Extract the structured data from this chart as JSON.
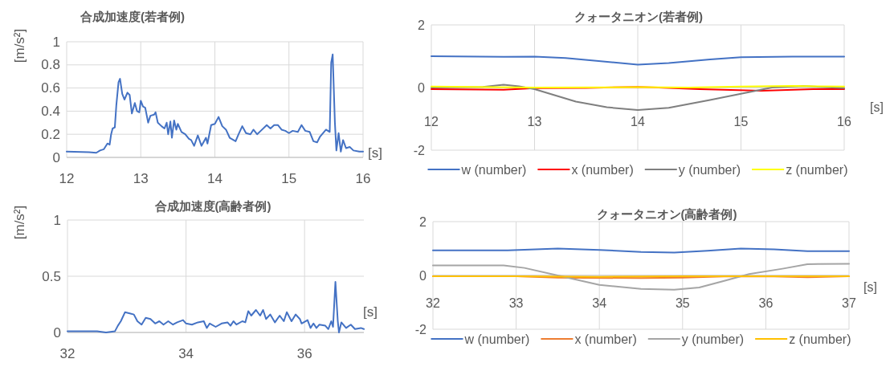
{
  "chart_data": [
    {
      "type": "line",
      "title": "合成加速度(若者例)",
      "xlabel": "[s]",
      "ylabel": "[m/s²]",
      "xlim": [
        12,
        16
      ],
      "xticks": [
        12,
        13,
        14,
        15,
        16
      ],
      "ylim": [
        0,
        1
      ],
      "yticks": [
        0,
        0.2,
        0.4,
        0.6,
        0.8,
        1
      ],
      "grid": true,
      "series": [
        {
          "color": "#4472c4",
          "x": [
            12.0,
            12.3,
            12.4,
            12.45,
            12.5,
            12.55,
            12.58,
            12.6,
            12.62,
            12.65,
            12.67,
            12.7,
            12.72,
            12.75,
            12.78,
            12.82,
            12.85,
            12.88,
            12.92,
            12.95,
            12.98,
            13.0,
            13.03,
            13.06,
            13.1,
            13.13,
            13.18,
            13.2,
            13.23,
            13.28,
            13.32,
            13.35,
            13.37,
            13.4,
            13.42,
            13.45,
            13.48,
            13.5,
            13.55,
            13.6,
            13.65,
            13.68,
            13.72,
            13.77,
            13.82,
            13.88,
            13.9,
            13.95,
            14.0,
            14.05,
            14.1,
            14.15,
            14.2,
            14.28,
            14.32,
            14.37,
            14.42,
            14.48,
            14.52,
            14.57,
            14.62,
            14.7,
            14.75,
            14.8,
            14.85,
            14.9,
            14.95,
            15.0,
            15.05,
            15.12,
            15.17,
            15.22,
            15.28,
            15.33,
            15.38,
            15.42,
            15.5,
            15.55,
            15.57,
            15.59,
            15.62,
            15.64,
            15.67,
            15.7,
            15.73,
            15.77,
            15.82,
            15.87,
            15.95,
            16.0
          ],
          "values": [
            0.05,
            0.045,
            0.04,
            0.06,
            0.07,
            0.12,
            0.11,
            0.2,
            0.25,
            0.26,
            0.45,
            0.65,
            0.68,
            0.55,
            0.5,
            0.56,
            0.54,
            0.38,
            0.47,
            0.4,
            0.39,
            0.49,
            0.44,
            0.43,
            0.3,
            0.36,
            0.37,
            0.39,
            0.3,
            0.27,
            0.25,
            0.3,
            0.2,
            0.31,
            0.17,
            0.32,
            0.24,
            0.29,
            0.22,
            0.2,
            0.16,
            0.15,
            0.1,
            0.19,
            0.1,
            0.17,
            0.12,
            0.28,
            0.29,
            0.35,
            0.27,
            0.24,
            0.17,
            0.14,
            0.2,
            0.27,
            0.21,
            0.2,
            0.24,
            0.2,
            0.23,
            0.28,
            0.25,
            0.28,
            0.28,
            0.24,
            0.23,
            0.21,
            0.23,
            0.22,
            0.28,
            0.23,
            0.22,
            0.14,
            0.13,
            0.18,
            0.24,
            0.22,
            0.82,
            0.89,
            0.3,
            0.06,
            0.21,
            0.05,
            0.15,
            0.08,
            0.09,
            0.06,
            0.05,
            0.05
          ]
        }
      ]
    },
    {
      "type": "line",
      "title": "クォータニオン(若者例)",
      "xlabel": "[s]",
      "xlim": [
        12,
        16
      ],
      "xticks": [
        12,
        13,
        14,
        15,
        16
      ],
      "ylim": [
        -2,
        2
      ],
      "yticks": [
        -2,
        0,
        2
      ],
      "grid": true,
      "legend": "bottom",
      "series": [
        {
          "name": "w (number)",
          "color": "#4472c4",
          "x": [
            12,
            12.7,
            13.0,
            13.3,
            13.6,
            14.0,
            14.3,
            14.7,
            15.0,
            15.5,
            16
          ],
          "values": [
            1.0,
            0.98,
            0.99,
            0.94,
            0.85,
            0.73,
            0.78,
            0.9,
            0.97,
            0.99,
            0.99
          ]
        },
        {
          "name": "x (number)",
          "color": "#ff0000",
          "x": [
            12,
            12.7,
            13,
            13.5,
            14,
            14.2,
            14.6,
            15.2,
            15.7,
            16
          ],
          "values": [
            -0.05,
            -0.07,
            -0.02,
            -0.01,
            0.02,
            0.0,
            -0.05,
            -0.1,
            -0.05,
            -0.05
          ]
        },
        {
          "name": "y (number)",
          "color": "#7f7f7f",
          "x": [
            12,
            12.5,
            12.7,
            12.85,
            13.0,
            13.4,
            13.7,
            14.0,
            14.3,
            14.7,
            15.0,
            15.3,
            15.6,
            16
          ],
          "values": [
            0.0,
            0.02,
            0.09,
            0.04,
            -0.05,
            -0.45,
            -0.63,
            -0.72,
            -0.65,
            -0.4,
            -0.2,
            0.0,
            0.05,
            -0.02
          ]
        },
        {
          "name": "z (number)",
          "color": "#ffff00",
          "x": [
            12,
            13,
            14,
            14.5,
            15,
            15.5,
            16
          ],
          "values": [
            0.03,
            0.0,
            0.01,
            0.0,
            0.03,
            0.05,
            0.03
          ]
        }
      ]
    },
    {
      "type": "line",
      "title": "合成加速度(高齢者例)",
      "xlabel": "[s]",
      "ylabel": "[m/s²]",
      "xlim": [
        32,
        37
      ],
      "xticks": [
        32,
        34,
        36
      ],
      "ylim": [
        0,
        1
      ],
      "yticks": [
        0,
        0.5,
        1
      ],
      "grid": true,
      "series": [
        {
          "color": "#4472c4",
          "x": [
            32.0,
            32.5,
            32.65,
            32.8,
            32.85,
            32.9,
            32.97,
            33.05,
            33.12,
            33.18,
            33.25,
            33.32,
            33.4,
            33.48,
            33.55,
            33.62,
            33.7,
            33.78,
            33.85,
            33.95,
            34.0,
            34.1,
            34.2,
            34.3,
            34.35,
            34.4,
            34.5,
            34.6,
            34.7,
            34.75,
            34.8,
            34.85,
            34.95,
            35.0,
            35.05,
            35.1,
            35.18,
            35.25,
            35.3,
            35.35,
            35.42,
            35.5,
            35.58,
            35.65,
            35.7,
            35.78,
            35.85,
            35.92,
            35.95,
            36.05,
            36.1,
            36.15,
            36.2,
            36.25,
            36.35,
            36.4,
            36.45,
            36.48,
            36.52,
            36.56,
            36.58,
            36.62,
            36.7,
            36.78,
            36.85,
            36.95,
            37.0
          ],
          "values": [
            0.01,
            0.01,
            0.0,
            0.01,
            0.06,
            0.1,
            0.18,
            0.17,
            0.16,
            0.1,
            0.07,
            0.13,
            0.12,
            0.08,
            0.1,
            0.07,
            0.1,
            0.07,
            0.09,
            0.11,
            0.08,
            0.07,
            0.09,
            0.1,
            0.04,
            0.08,
            0.05,
            0.08,
            0.09,
            0.06,
            0.1,
            0.07,
            0.1,
            0.09,
            0.19,
            0.15,
            0.2,
            0.15,
            0.2,
            0.12,
            0.16,
            0.09,
            0.15,
            0.1,
            0.18,
            0.1,
            0.16,
            0.12,
            0.08,
            0.11,
            0.04,
            0.08,
            0.04,
            0.07,
            0.06,
            0.03,
            0.1,
            0.05,
            0.45,
            0.1,
            0.0,
            0.09,
            0.04,
            0.07,
            0.03,
            0.04,
            0.03
          ]
        }
      ]
    },
    {
      "type": "line",
      "title": "クォータニオン(高齢者例)",
      "xlabel": "[s]",
      "xlim": [
        32,
        37
      ],
      "xticks": [
        32,
        33,
        34,
        35,
        36,
        37
      ],
      "ylim": [
        -2,
        2
      ],
      "yticks": [
        -2,
        0,
        2
      ],
      "grid": true,
      "legend": "bottom",
      "series": [
        {
          "name": "w (number)",
          "color": "#4472c4",
          "x": [
            32,
            32.9,
            33.5,
            34,
            34.5,
            34.9,
            35.3,
            35.7,
            36.1,
            36.5,
            37
          ],
          "values": [
            0.93,
            0.93,
            1.0,
            0.95,
            0.87,
            0.85,
            0.92,
            1.0,
            0.97,
            0.9,
            0.9
          ]
        },
        {
          "name": "x (number)",
          "color": "#ed7d31",
          "x": [
            32,
            33,
            33.5,
            34.5,
            35,
            35.5,
            36,
            36.5,
            37
          ],
          "values": [
            -0.03,
            -0.03,
            -0.08,
            -0.1,
            -0.08,
            -0.04,
            -0.03,
            -0.07,
            -0.03
          ]
        },
        {
          "name": "y (number)",
          "color": "#a5a5a5",
          "x": [
            32,
            32.85,
            33.1,
            33.5,
            34.0,
            34.5,
            34.9,
            35.2,
            35.5,
            35.8,
            36.2,
            36.5,
            37
          ],
          "values": [
            0.37,
            0.37,
            0.28,
            0.0,
            -0.35,
            -0.5,
            -0.53,
            -0.45,
            -0.2,
            0.05,
            0.25,
            0.42,
            0.43
          ]
        },
        {
          "name": "z (number)",
          "color": "#ffc000",
          "x": [
            32,
            33,
            34,
            35,
            36,
            37
          ],
          "values": [
            -0.03,
            -0.03,
            -0.05,
            -0.03,
            -0.03,
            -0.03
          ]
        }
      ]
    }
  ]
}
